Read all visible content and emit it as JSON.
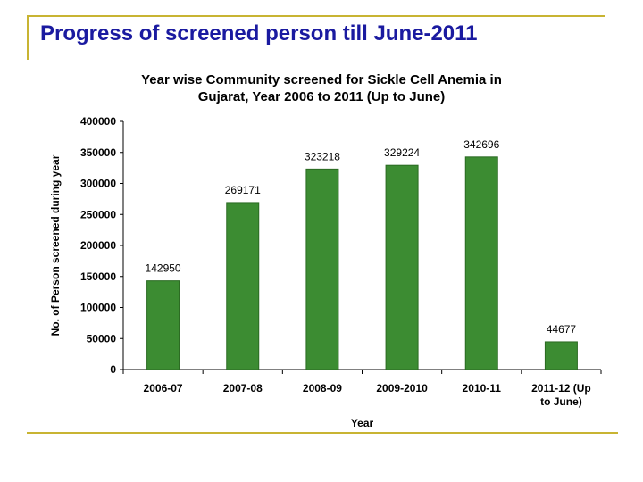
{
  "slide": {
    "title": "Progress of screened person till June-2011"
  },
  "chart_data": {
    "type": "bar",
    "title_lines": [
      "Year wise Community screened for Sickle Cell Anemia in",
      "Gujarat, Year 2006 to 2011 (Up to June)"
    ],
    "xlabel": "Year",
    "ylabel": "No. of Person screened during year",
    "ylim": [
      0,
      400000
    ],
    "yticks": [
      0,
      50000,
      100000,
      150000,
      200000,
      250000,
      300000,
      350000,
      400000
    ],
    "categories": [
      [
        "2006-07"
      ],
      [
        "2007-08"
      ],
      [
        "2008-09"
      ],
      [
        "2009-2010"
      ],
      [
        "2010-11"
      ],
      [
        "2011-12 (Up",
        "to June)"
      ]
    ],
    "values": [
      142950,
      269171,
      323218,
      329224,
      342696,
      44677
    ],
    "data_labels": [
      "142950",
      "269171",
      "323218",
      "329224",
      "342696",
      "44677"
    ],
    "bar_color": "#3c8c32",
    "grid": false,
    "legend": "none"
  }
}
